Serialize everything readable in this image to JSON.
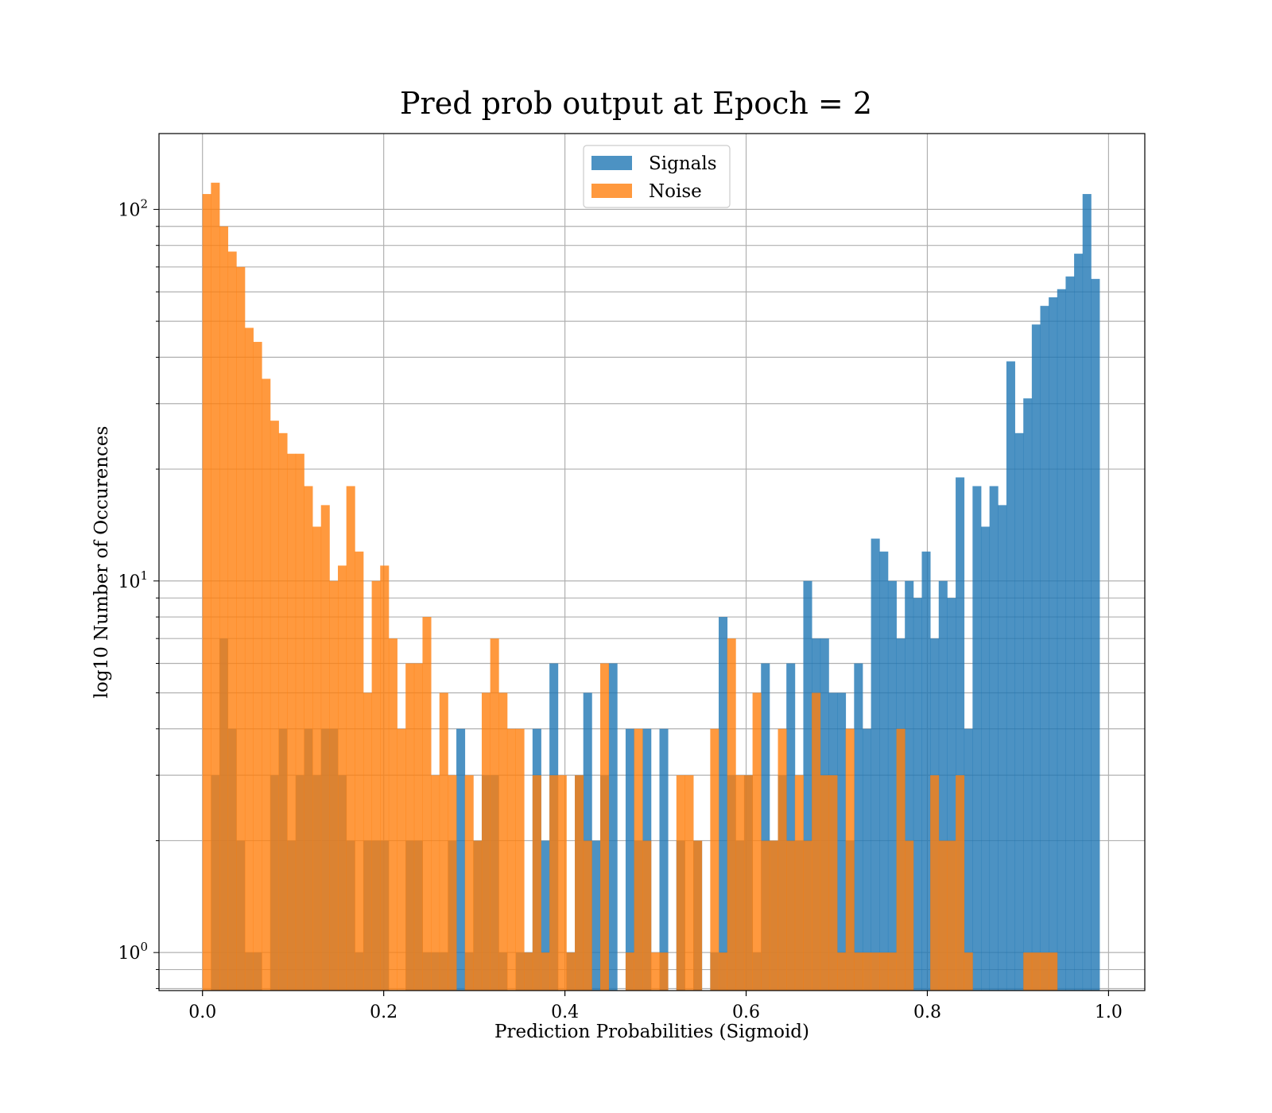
{
  "chart_data": {
    "type": "bar",
    "title": "Pred prob output at Epoch = 2",
    "xlabel": "Prediction Probabilities (Sigmoid)",
    "ylabel": "log10 Number of Occurences",
    "yscale": "log",
    "xlim": [
      -0.048,
      1.04
    ],
    "ylim": [
      0.79,
      160
    ],
    "x_ticks": [
      0.0,
      0.2,
      0.4,
      0.6,
      0.8,
      1.0
    ],
    "x_tick_labels": [
      "0.0",
      "0.2",
      "0.4",
      "0.6",
      "0.8",
      "1.0"
    ],
    "y_ticks": [
      1,
      10,
      100
    ],
    "y_tick_labels": [
      {
        "base": "10",
        "exp": "0"
      },
      {
        "base": "10",
        "exp": "1"
      },
      {
        "base": "10",
        "exp": "2"
      }
    ],
    "grid": true,
    "legend_position": "upper-center",
    "bin_range": [
      0.0,
      0.99
    ],
    "series": [
      {
        "name": "Signals",
        "color": "#1f77b4",
        "values": [
          0,
          3,
          7,
          4,
          2,
          1,
          1,
          0,
          3,
          4,
          2,
          3,
          4,
          3,
          4,
          4,
          3,
          2,
          1,
          2,
          2,
          2,
          0,
          0,
          2,
          2,
          1,
          1,
          1,
          2,
          4,
          1,
          2,
          3,
          3,
          1,
          0,
          1,
          1,
          4,
          2,
          6,
          0,
          1,
          3,
          5,
          2,
          3,
          6,
          0,
          4,
          2,
          4,
          0,
          4,
          0,
          2,
          0,
          2,
          0,
          1,
          8,
          3,
          2,
          3,
          1,
          6,
          2,
          3,
          6,
          2,
          10,
          7,
          7,
          5,
          5,
          2,
          6,
          4,
          13,
          12,
          10,
          7,
          10,
          9,
          12,
          7,
          10,
          9,
          19,
          4,
          18,
          14,
          18,
          16,
          39,
          25,
          31,
          49,
          55,
          58,
          61,
          66,
          76,
          110,
          65
        ]
      },
      {
        "name": "Noise",
        "color": "#ff7f0e",
        "values": [
          110,
          118,
          90,
          77,
          70,
          48,
          44,
          35,
          27,
          25,
          22,
          22,
          18,
          14,
          16,
          10,
          11,
          18,
          12,
          5,
          10,
          11,
          7,
          4,
          6,
          6,
          8,
          3,
          5,
          3,
          0,
          3,
          2,
          5,
          7,
          5,
          4,
          4,
          1,
          3,
          1,
          3,
          3,
          1,
          3,
          2,
          0,
          6,
          0,
          0,
          1,
          4,
          2,
          1,
          1,
          0,
          3,
          3,
          2,
          0,
          4,
          1,
          7,
          3,
          3,
          5,
          2,
          2,
          4,
          2,
          3,
          2,
          5,
          3,
          3,
          1,
          4,
          1,
          1,
          1,
          1,
          1,
          4,
          2,
          0,
          0,
          3,
          2,
          2,
          3,
          1,
          0,
          0,
          0,
          0,
          0,
          0,
          1,
          1,
          1,
          1,
          0,
          0,
          0,
          0,
          0
        ]
      }
    ]
  }
}
